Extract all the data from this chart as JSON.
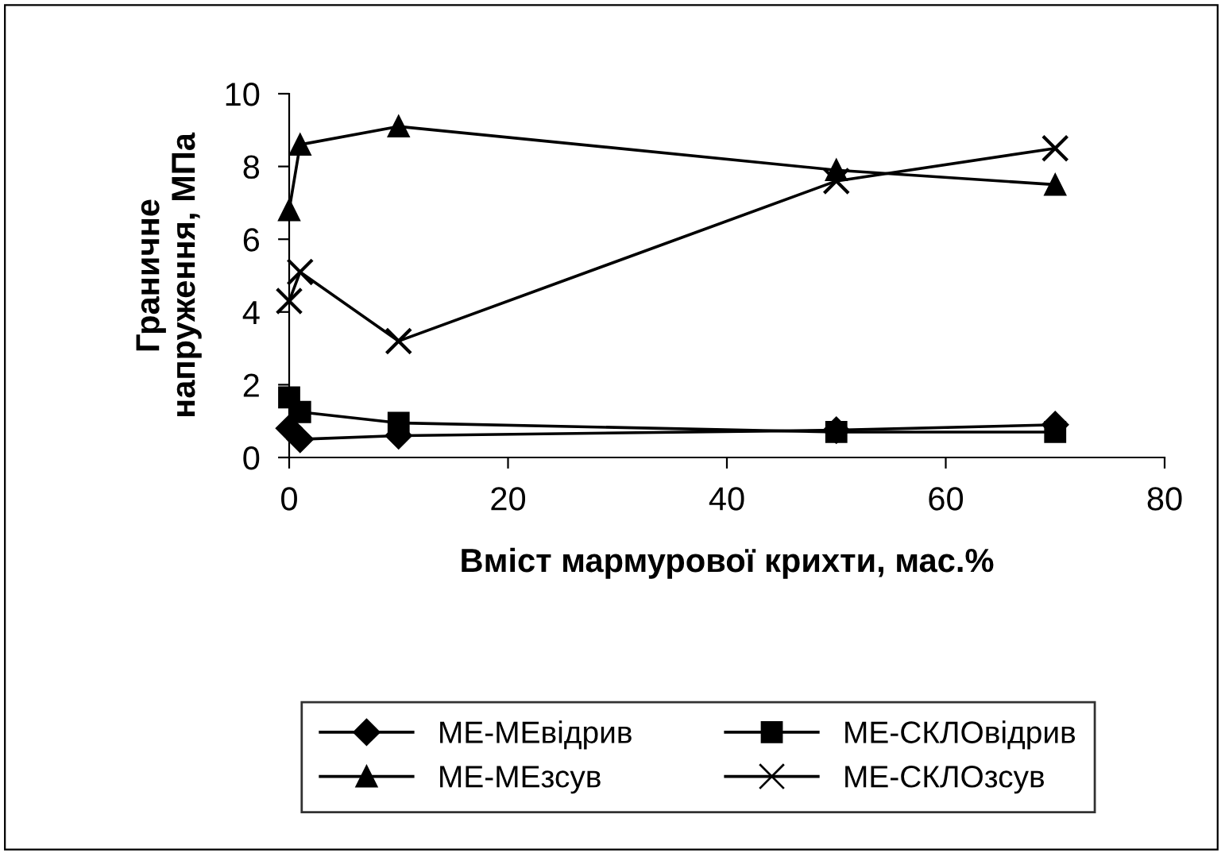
{
  "chart_data": {
    "type": "line",
    "xlabel": "Вміст мармурової крихти, мас.%",
    "ylabel": "Граничне\nнапруження, МПа",
    "x": [
      0,
      1,
      10,
      50,
      70
    ],
    "series": [
      {
        "name": "МЕ-МЕвідрив",
        "color": "#000000",
        "marker": "diamond",
        "values": [
          0.8,
          0.5,
          0.6,
          0.75,
          0.9
        ]
      },
      {
        "name": "МЕ-СКЛОвідрив",
        "color": "#000000",
        "marker": "square",
        "values": [
          1.65,
          1.25,
          0.95,
          0.7,
          0.7
        ]
      },
      {
        "name": "МЕ-МЕзсув",
        "color": "#000000",
        "marker": "triangle",
        "values": [
          6.8,
          8.6,
          9.1,
          7.9,
          7.5
        ]
      },
      {
        "name": "МЕ-СКЛОзсув",
        "color": "#000000",
        "marker": "cross",
        "values": [
          4.3,
          5.1,
          3.2,
          7.6,
          8.5
        ]
      }
    ],
    "xlim": [
      0,
      80
    ],
    "xticks": [
      0,
      20,
      40,
      60,
      80
    ],
    "ylim": [
      0,
      10
    ],
    "yticks": [
      0,
      2,
      4,
      6,
      8,
      10
    ],
    "grid": false,
    "legend": "bottom",
    "line_style": "solid"
  }
}
